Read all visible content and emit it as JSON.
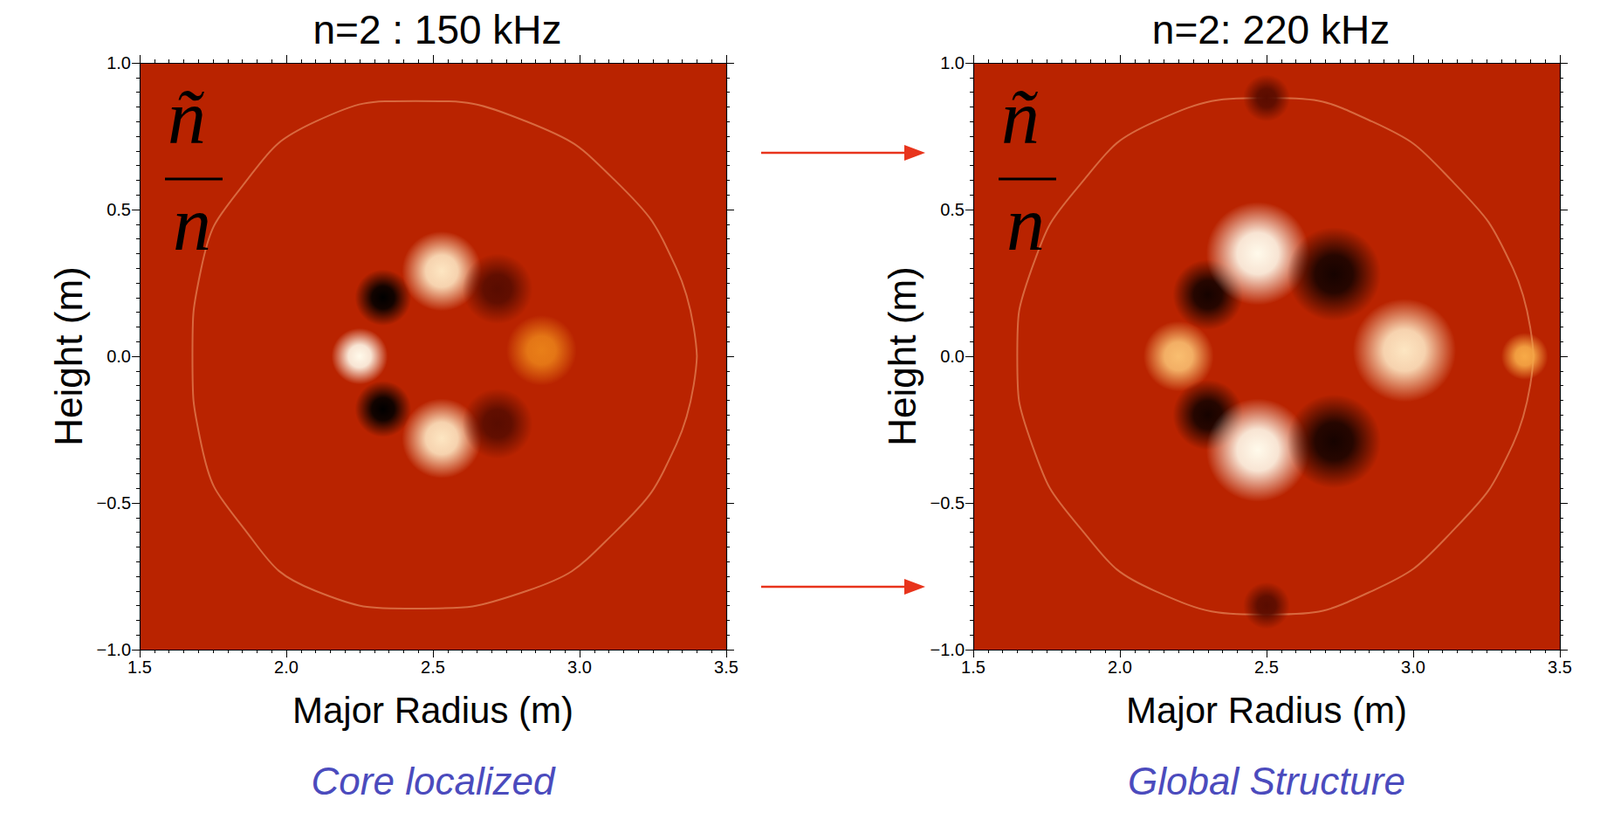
{
  "chart_data": [
    {
      "type": "scatter",
      "title": "n=2 : 150 kHz",
      "xlabel": "Major Radius (m)",
      "ylabel": "Height (m)",
      "annotation": {
        "numerator": "ñ",
        "denominator": "n"
      },
      "caption": "Core localized",
      "xlim": [
        1.5,
        3.5
      ],
      "ylim": [
        -1,
        1
      ],
      "xticks": [
        1.5,
        {
          "value": 2,
          "label": "2.0"
        },
        2.5,
        {
          "value": 3,
          "label": "3.0"
        },
        3.5
      ],
      "yticks": [
        {
          "value": -1,
          "label": "−1.0"
        },
        {
          "value": -0.5,
          "label": "−0.5"
        },
        {
          "value": 0,
          "label": "0.0"
        },
        0.5,
        {
          "value": 1,
          "label": "1.0"
        }
      ],
      "grid": false,
      "color_range": [
        -1,
        1
      ],
      "points": {
        "x": [
          2.25,
          2.33,
          2.33,
          2.53,
          2.53,
          2.72,
          2.72,
          2.87
        ],
        "y": [
          0.0,
          0.2,
          -0.18,
          0.29,
          -0.28,
          0.23,
          -0.23,
          0.02
        ],
        "values": [
          1,
          -1,
          -1,
          0.9,
          0.9,
          -0.6,
          -0.6,
          0.4
        ],
        "sizes": [
          0.12,
          0.12,
          0.12,
          0.17,
          0.17,
          0.15,
          0.15,
          0.15
        ]
      },
      "boundary": {
        "x": [
          3.4,
          3.33,
          3.12,
          2.82,
          2.44,
          2.1,
          1.85,
          1.71,
          1.68,
          1.71,
          1.85,
          2.1,
          2.44,
          2.82,
          3.12,
          3.33,
          3.4
        ],
        "y": [
          0.0,
          0.3,
          0.6,
          0.8,
          0.87,
          0.8,
          0.58,
          0.3,
          0.0,
          -0.3,
          -0.58,
          -0.8,
          -0.86,
          -0.8,
          -0.6,
          -0.3,
          0.0
        ]
      }
    },
    {
      "type": "scatter",
      "title": "n=2: 220 kHz",
      "xlabel": "Major Radius (m)",
      "ylabel": "Height (m)",
      "annotation": {
        "numerator": "ñ",
        "denominator": "n"
      },
      "caption": "Global Structure",
      "xlim": [
        1.5,
        3.5
      ],
      "ylim": [
        -1,
        1
      ],
      "xticks": [
        1.5,
        {
          "value": 2,
          "label": "2.0"
        },
        2.5,
        {
          "value": 3,
          "label": "3.0"
        },
        3.5
      ],
      "yticks": [
        {
          "value": -1,
          "label": "−1.0"
        },
        {
          "value": -0.5,
          "label": "−0.5"
        },
        {
          "value": 0,
          "label": "0.0"
        },
        0.5,
        {
          "value": 1,
          "label": "1.0"
        }
      ],
      "grid": false,
      "color_range": [
        -1,
        1
      ],
      "points": {
        "x": [
          2.2,
          2.3,
          2.3,
          2.47,
          2.47,
          2.73,
          2.73,
          2.97,
          3.38,
          2.5,
          2.5
        ],
        "y": [
          0.0,
          0.21,
          -0.2,
          0.35,
          -0.32,
          0.28,
          -0.29,
          0.02,
          0.0,
          0.88,
          -0.85
        ],
        "values": [
          0.7,
          -0.9,
          -0.9,
          1,
          1,
          -0.9,
          -0.9,
          0.9,
          0.6,
          -0.6,
          -0.6
        ],
        "sizes": [
          0.15,
          0.15,
          0.15,
          0.22,
          0.22,
          0.2,
          0.2,
          0.22,
          0.1,
          0.1,
          0.1
        ]
      },
      "boundary": {
        "x": [
          3.41,
          3.34,
          3.13,
          2.86,
          2.52,
          2.12,
          1.86,
          1.7,
          1.65,
          1.7,
          1.86,
          2.12,
          2.52,
          2.86,
          3.13,
          3.34,
          3.41
        ],
        "y": [
          0.0,
          0.3,
          0.6,
          0.8,
          0.88,
          0.8,
          0.58,
          0.3,
          0.0,
          -0.3,
          -0.58,
          -0.8,
          -0.88,
          -0.8,
          -0.6,
          -0.3,
          0.0
        ]
      }
    }
  ]
}
